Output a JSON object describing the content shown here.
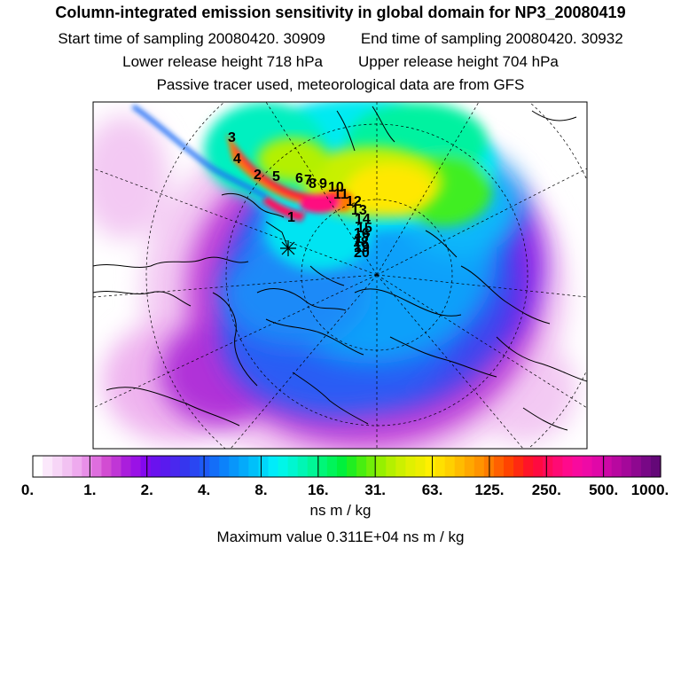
{
  "header": {
    "title": "Column-integrated emission sensitivity in global domain for NP3_20080419",
    "start_time": "Start time of sampling 20080420. 30909",
    "end_time": "End time of sampling 20080420. 30932",
    "lower_height": "Lower release height  718 hPa",
    "upper_height": "Upper release height  704 hPa",
    "note": "Passive tracer used, meteorological data are from GFS"
  },
  "colorbar": {
    "tick_labels": [
      "0.",
      "1.",
      "2.",
      "4.",
      "8.",
      "16.",
      "31.",
      "63.",
      "125.",
      "250.",
      "500.",
      "1000."
    ],
    "colors": [
      "#ffffff",
      "#fbe8fb",
      "#f7d6f7",
      "#f2c2f2",
      "#eeaaee",
      "#e88fe8",
      "#de6ede",
      "#d24cd2",
      "#c036d6",
      "#aa1edc",
      "#9a12e6",
      "#8408ee",
      "#6a12ee",
      "#5a1aee",
      "#4a28ee",
      "#3636ee",
      "#2a46f2",
      "#1e5af6",
      "#146ef8",
      "#0c82fa",
      "#0896fa",
      "#04aafa",
      "#00c0fa",
      "#00d6fa",
      "#00ecfa",
      "#00f6e8",
      "#00f6d0",
      "#00f6b4",
      "#00f696",
      "#00f678",
      "#00f45a",
      "#00f03c",
      "#20ee20",
      "#48ee10",
      "#70ee08",
      "#96f000",
      "#b4f000",
      "#ccf000",
      "#e0f000",
      "#eeee00",
      "#fff000",
      "#ffe000",
      "#ffd000",
      "#ffbc00",
      "#ffa800",
      "#ff9400",
      "#ff7c00",
      "#ff6000",
      "#ff4400",
      "#ff2a10",
      "#ff1428",
      "#ff0a40",
      "#ff0a5a",
      "#ff0a74",
      "#ff0a8c",
      "#f80a9e",
      "#ee0aa6",
      "#e008a8",
      "#cc08a6",
      "#b808a0",
      "#a4089a",
      "#8e0890",
      "#780886",
      "#640878"
    ],
    "unit": "ns m / kg",
    "max_value_text": "Maximum value  0.311E+04 ns m / kg"
  },
  "map": {
    "point_labels": [
      "3",
      "4",
      "2",
      "5",
      "6",
      "7",
      "8",
      "9",
      "10",
      "11",
      "12",
      "13",
      "14",
      "15",
      "16",
      "17",
      "18",
      "19",
      "20",
      "1"
    ]
  }
}
